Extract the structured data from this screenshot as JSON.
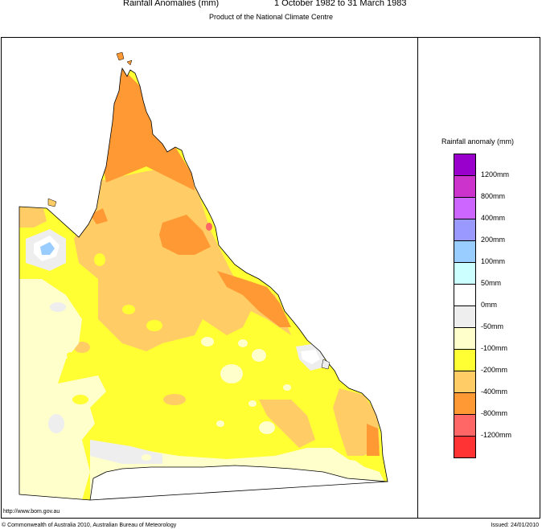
{
  "header": {
    "title": "Rainfall Anomalies (mm)",
    "period": "1 October 1982 to 31 March 1983",
    "subtitle": "Product of the National Climate Centre"
  },
  "legend": {
    "title": "Rainfall anomaly (mm)",
    "swatches": [
      {
        "color": "#9900cc"
      },
      {
        "color": "#cc33cc"
      },
      {
        "color": "#cc66ff"
      },
      {
        "color": "#9999ff"
      },
      {
        "color": "#99ccff"
      },
      {
        "color": "#ccffff"
      },
      {
        "color": "#ffffff"
      },
      {
        "color": "#eeeeee"
      },
      {
        "color": "#ffffcc"
      },
      {
        "color": "#ffff33"
      },
      {
        "color": "#ffcc66"
      },
      {
        "color": "#ff9933"
      },
      {
        "color": "#ff6666"
      },
      {
        "color": "#ff3333"
      }
    ],
    "labels": [
      "1200mm",
      "800mm",
      "400mm",
      "200mm",
      "100mm",
      "50mm",
      "0mm",
      "-50mm",
      "-100mm",
      "-200mm",
      "-400mm",
      "-800mm",
      "-1200mm"
    ]
  },
  "map": {
    "region": "Queensland",
    "category_colors": {
      "lt_minus_800": "#ff6666",
      "minus_400_to_800": "#ff9933",
      "minus_200_to_400": "#ffcc66",
      "minus_100_to_200": "#ffff33",
      "minus_50_to_100": "#ffffcc",
      "zero_to_minus_50": "#eeeeee",
      "zero_to_50": "#ffffff"
    }
  },
  "footer": {
    "url": "http://www.bom.gov.au",
    "copyright": "© Commonwealth of Australia 2010, Australian Bureau of Meteorology",
    "issued": "Issued: 24/01/2010"
  }
}
